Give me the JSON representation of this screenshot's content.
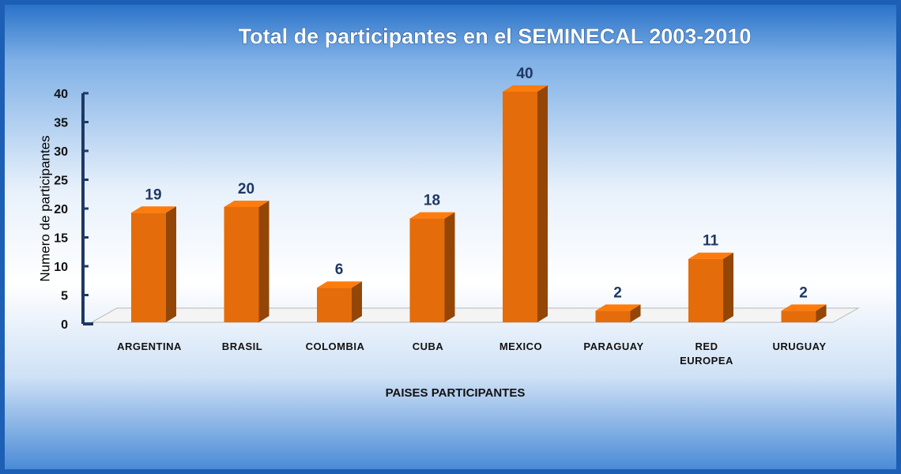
{
  "chart_data": {
    "type": "bar3d",
    "title": "Total de participantes en el SEMINECAL 2003-2010",
    "y_label": "Numero de participantes",
    "x_label": "PAISES PARTICIPANTES",
    "categories": [
      "ARGENTINA",
      "BRASIL",
      "COLOMBIA",
      "CUBA",
      "MEXICO",
      "PARAGUAY",
      "RED EUROPEA",
      "URUGUAY"
    ],
    "values": [
      19,
      20,
      6,
      18,
      40,
      2,
      11,
      2
    ],
    "color": "#e46c0a",
    "ylim": [
      0,
      40
    ],
    "yticks": [
      0,
      5,
      10,
      15,
      20,
      25,
      30,
      35,
      40
    ]
  }
}
